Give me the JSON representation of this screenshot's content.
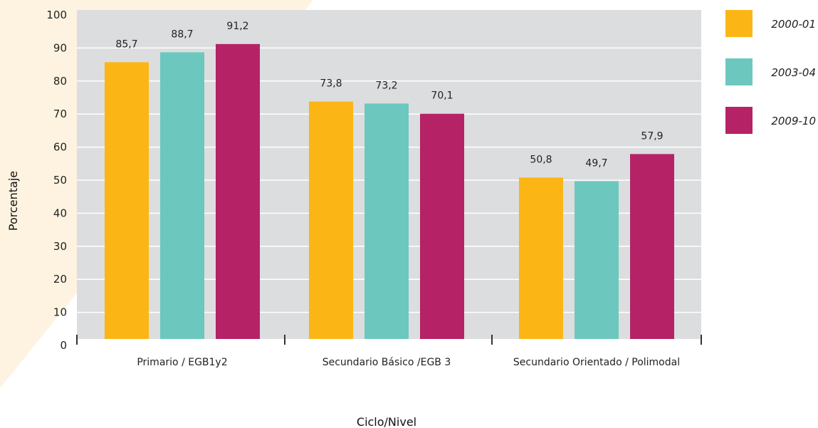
{
  "chart_data": {
    "type": "bar",
    "categories": [
      "Primario / EGB1y2",
      "Secundario Básico /EGB 3",
      "Secundario Orientado / Polimodal"
    ],
    "series": [
      {
        "name": "2000-01",
        "color": "#FBB616",
        "values": [
          85.7,
          73.8,
          50.8
        ],
        "labels": [
          "85,7",
          "73,8",
          "50,8"
        ]
      },
      {
        "name": "2003-04",
        "color": "#6CC8BF",
        "values": [
          88.7,
          73.2,
          49.7
        ],
        "labels": [
          "88,7",
          "73,2",
          "49,7"
        ]
      },
      {
        "name": "2009-10",
        "color": "#B52366",
        "values": [
          91.2,
          70.1,
          57.9
        ],
        "labels": [
          "91,2",
          "70,1",
          "57,9"
        ]
      }
    ],
    "ylim": [
      0,
      100
    ],
    "yticks": [
      "0",
      "10",
      "20",
      "30",
      "40",
      "50",
      "60",
      "70",
      "80",
      "90",
      "100"
    ],
    "xlabel": "Ciclo/Nivel",
    "ylabel": "Porcentaje",
    "grid": true,
    "legend": "right",
    "colors": {
      "plot_background": "#DCDDDE",
      "gridline": "#ffffff",
      "decor_background": "#FDF3E0"
    }
  }
}
